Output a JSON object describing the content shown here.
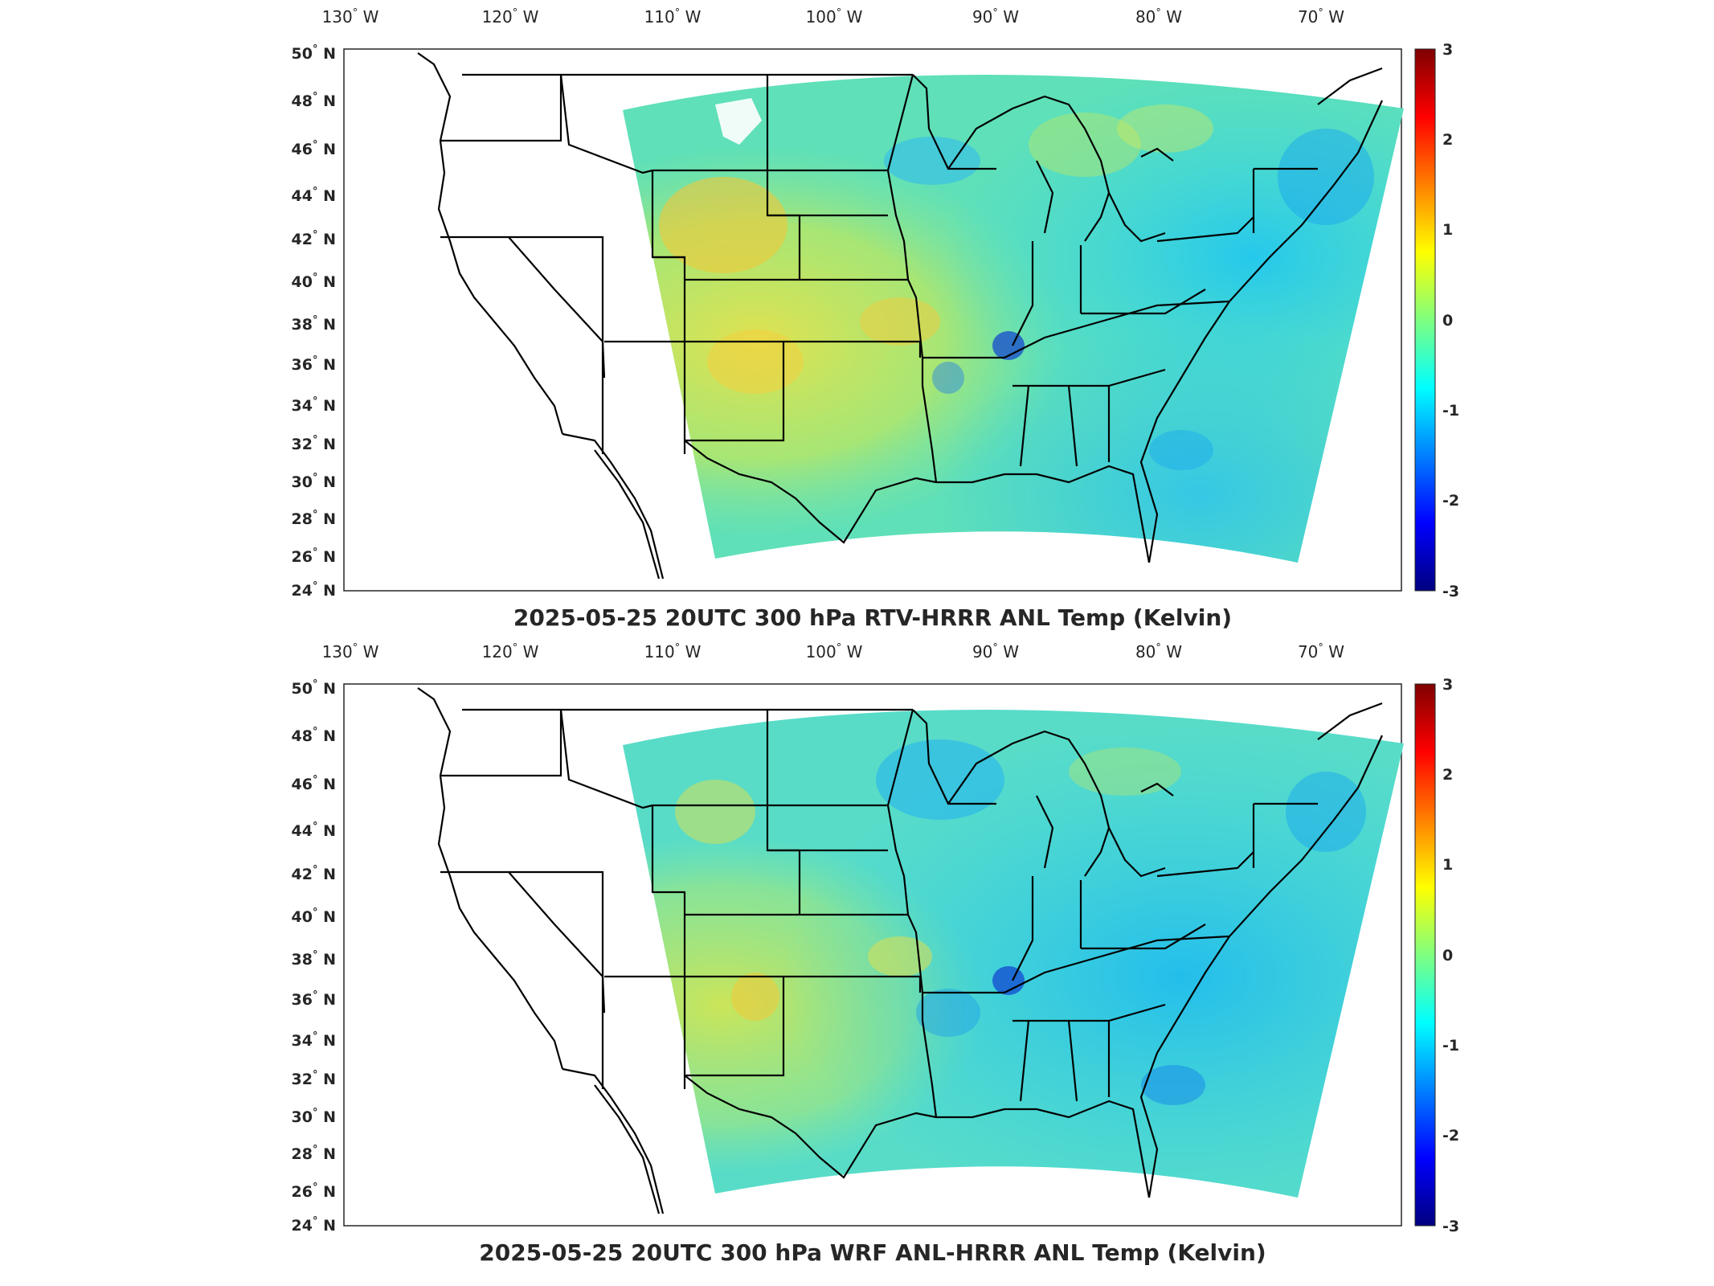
{
  "colors": {
    "background": "#ffffff",
    "frame": "#262626",
    "state_lines": "#000000",
    "colormap": "jet"
  },
  "colorbar": {
    "ticks": [
      "3",
      "2",
      "1",
      "0",
      "-1",
      "-2",
      "-3"
    ],
    "range": [
      -3,
      3
    ]
  },
  "longitude_labels": [
    {
      "deg": "130",
      "hem": "W"
    },
    {
      "deg": "120",
      "hem": "W"
    },
    {
      "deg": "110",
      "hem": "W"
    },
    {
      "deg": "100",
      "hem": "W"
    },
    {
      "deg": "90",
      "hem": "W"
    },
    {
      "deg": "80",
      "hem": "W"
    },
    {
      "deg": "70",
      "hem": "W"
    }
  ],
  "latitude_labels": [
    {
      "deg": "50",
      "hem": "N"
    },
    {
      "deg": "48",
      "hem": "N"
    },
    {
      "deg": "46",
      "hem": "N"
    },
    {
      "deg": "44",
      "hem": "N"
    },
    {
      "deg": "42",
      "hem": "N"
    },
    {
      "deg": "40",
      "hem": "N"
    },
    {
      "deg": "38",
      "hem": "N"
    },
    {
      "deg": "36",
      "hem": "N"
    },
    {
      "deg": "34",
      "hem": "N"
    },
    {
      "deg": "32",
      "hem": "N"
    },
    {
      "deg": "30",
      "hem": "N"
    },
    {
      "deg": "28",
      "hem": "N"
    },
    {
      "deg": "26",
      "hem": "N"
    },
    {
      "deg": "24",
      "hem": "N"
    }
  ],
  "panels": [
    {
      "title": "2025-05-25 20UTC 300 hPa RTV-HRRR ANL Temp (Kelvin)",
      "field": "RTV-HRRR ANL",
      "warm_bias": "west-central plains and southwest",
      "cool_bias": "northeast, upper midwest, mississippi valley"
    },
    {
      "title": "2025-05-25 20UTC 300 hPa WRF ANL-HRRR ANL Temp (Kelvin)",
      "field": "WRF ANL-HRRR ANL",
      "warm_bias": "southwest",
      "cool_bias": "east, midwest, southeast"
    }
  ]
}
